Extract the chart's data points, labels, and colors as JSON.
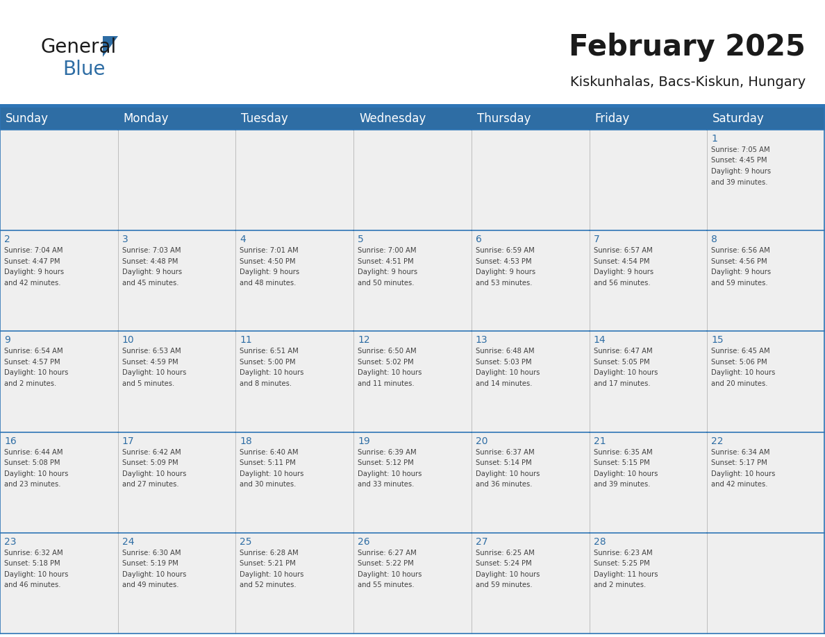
{
  "title": "February 2025",
  "subtitle": "Kiskunhalas, Bacs-Kiskun, Hungary",
  "header_color": "#2E6DA4",
  "header_text_color": "#FFFFFF",
  "cell_bg_color": "#EFEFEF",
  "day_number_color": "#2E6DA4",
  "text_color": "#404040",
  "line_color": "#2E75B6",
  "days_of_week": [
    "Sunday",
    "Monday",
    "Tuesday",
    "Wednesday",
    "Thursday",
    "Friday",
    "Saturday"
  ],
  "background_color": "#FFFFFF",
  "calendar": [
    [
      null,
      null,
      null,
      null,
      null,
      null,
      1
    ],
    [
      2,
      3,
      4,
      5,
      6,
      7,
      8
    ],
    [
      9,
      10,
      11,
      12,
      13,
      14,
      15
    ],
    [
      16,
      17,
      18,
      19,
      20,
      21,
      22
    ],
    [
      23,
      24,
      25,
      26,
      27,
      28,
      null
    ]
  ],
  "cell_data": {
    "1": {
      "sunrise": "7:05 AM",
      "sunset": "4:45 PM",
      "daylight_hours": 9,
      "daylight_minutes": 39
    },
    "2": {
      "sunrise": "7:04 AM",
      "sunset": "4:47 PM",
      "daylight_hours": 9,
      "daylight_minutes": 42
    },
    "3": {
      "sunrise": "7:03 AM",
      "sunset": "4:48 PM",
      "daylight_hours": 9,
      "daylight_minutes": 45
    },
    "4": {
      "sunrise": "7:01 AM",
      "sunset": "4:50 PM",
      "daylight_hours": 9,
      "daylight_minutes": 48
    },
    "5": {
      "sunrise": "7:00 AM",
      "sunset": "4:51 PM",
      "daylight_hours": 9,
      "daylight_minutes": 50
    },
    "6": {
      "sunrise": "6:59 AM",
      "sunset": "4:53 PM",
      "daylight_hours": 9,
      "daylight_minutes": 53
    },
    "7": {
      "sunrise": "6:57 AM",
      "sunset": "4:54 PM",
      "daylight_hours": 9,
      "daylight_minutes": 56
    },
    "8": {
      "sunrise": "6:56 AM",
      "sunset": "4:56 PM",
      "daylight_hours": 9,
      "daylight_minutes": 59
    },
    "9": {
      "sunrise": "6:54 AM",
      "sunset": "4:57 PM",
      "daylight_hours": 10,
      "daylight_minutes": 2
    },
    "10": {
      "sunrise": "6:53 AM",
      "sunset": "4:59 PM",
      "daylight_hours": 10,
      "daylight_minutes": 5
    },
    "11": {
      "sunrise": "6:51 AM",
      "sunset": "5:00 PM",
      "daylight_hours": 10,
      "daylight_minutes": 8
    },
    "12": {
      "sunrise": "6:50 AM",
      "sunset": "5:02 PM",
      "daylight_hours": 10,
      "daylight_minutes": 11
    },
    "13": {
      "sunrise": "6:48 AM",
      "sunset": "5:03 PM",
      "daylight_hours": 10,
      "daylight_minutes": 14
    },
    "14": {
      "sunrise": "6:47 AM",
      "sunset": "5:05 PM",
      "daylight_hours": 10,
      "daylight_minutes": 17
    },
    "15": {
      "sunrise": "6:45 AM",
      "sunset": "5:06 PM",
      "daylight_hours": 10,
      "daylight_minutes": 20
    },
    "16": {
      "sunrise": "6:44 AM",
      "sunset": "5:08 PM",
      "daylight_hours": 10,
      "daylight_minutes": 23
    },
    "17": {
      "sunrise": "6:42 AM",
      "sunset": "5:09 PM",
      "daylight_hours": 10,
      "daylight_minutes": 27
    },
    "18": {
      "sunrise": "6:40 AM",
      "sunset": "5:11 PM",
      "daylight_hours": 10,
      "daylight_minutes": 30
    },
    "19": {
      "sunrise": "6:39 AM",
      "sunset": "5:12 PM",
      "daylight_hours": 10,
      "daylight_minutes": 33
    },
    "20": {
      "sunrise": "6:37 AM",
      "sunset": "5:14 PM",
      "daylight_hours": 10,
      "daylight_minutes": 36
    },
    "21": {
      "sunrise": "6:35 AM",
      "sunset": "5:15 PM",
      "daylight_hours": 10,
      "daylight_minutes": 39
    },
    "22": {
      "sunrise": "6:34 AM",
      "sunset": "5:17 PM",
      "daylight_hours": 10,
      "daylight_minutes": 42
    },
    "23": {
      "sunrise": "6:32 AM",
      "sunset": "5:18 PM",
      "daylight_hours": 10,
      "daylight_minutes": 46
    },
    "24": {
      "sunrise": "6:30 AM",
      "sunset": "5:19 PM",
      "daylight_hours": 10,
      "daylight_minutes": 49
    },
    "25": {
      "sunrise": "6:28 AM",
      "sunset": "5:21 PM",
      "daylight_hours": 10,
      "daylight_minutes": 52
    },
    "26": {
      "sunrise": "6:27 AM",
      "sunset": "5:22 PM",
      "daylight_hours": 10,
      "daylight_minutes": 55
    },
    "27": {
      "sunrise": "6:25 AM",
      "sunset": "5:24 PM",
      "daylight_hours": 10,
      "daylight_minutes": 59
    },
    "28": {
      "sunrise": "6:23 AM",
      "sunset": "5:25 PM",
      "daylight_hours": 11,
      "daylight_minutes": 2
    }
  },
  "header_fontsize": 12,
  "day_number_fontsize": 10,
  "cell_text_fontsize": 7.2,
  "title_fontsize": 30,
  "subtitle_fontsize": 14
}
